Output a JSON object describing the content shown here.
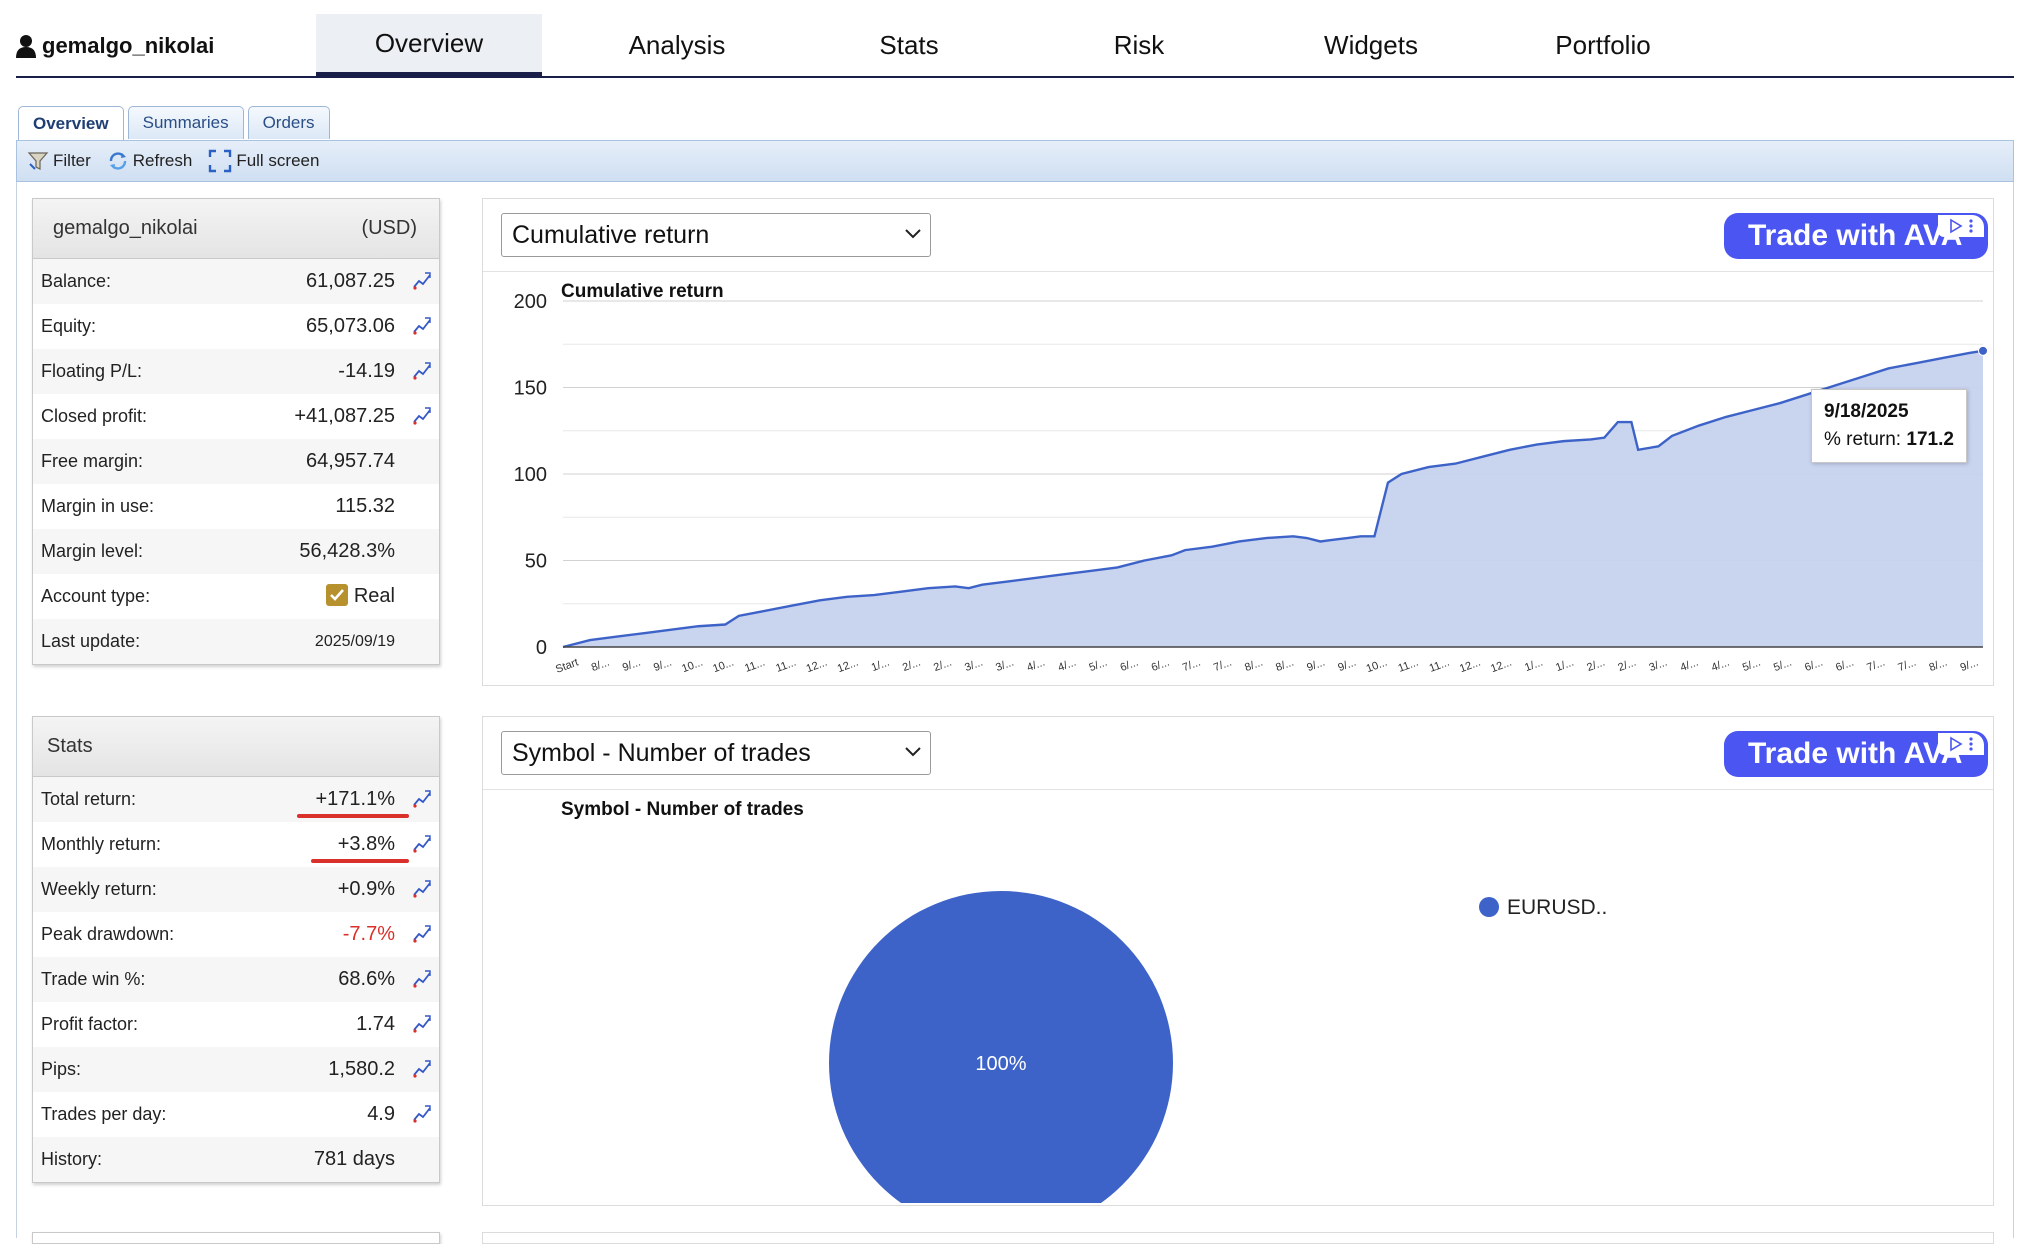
{
  "account": {
    "username": "gemalgo_nikolai",
    "currency": "(USD)"
  },
  "nav": {
    "tabs": [
      {
        "label": "Overview",
        "active": true
      },
      {
        "label": "Analysis"
      },
      {
        "label": "Stats"
      },
      {
        "label": "Risk"
      },
      {
        "label": "Widgets"
      },
      {
        "label": "Portfolio"
      }
    ]
  },
  "subtabs": [
    {
      "label": "Overview",
      "active": true
    },
    {
      "label": "Summaries"
    },
    {
      "label": "Orders"
    }
  ],
  "toolbar": {
    "filter": "Filter",
    "refresh": "Refresh",
    "fullscreen": "Full screen"
  },
  "account_panel": {
    "rows": [
      {
        "label": "Balance:",
        "value": "61,087.25"
      },
      {
        "label": "Equity:",
        "value": "65,073.06"
      },
      {
        "label": "Floating P/L:",
        "value": "-14.19"
      },
      {
        "label": "Closed profit:",
        "value": "+41,087.25"
      },
      {
        "label": "Free margin:",
        "value": "64,957.74"
      },
      {
        "label": "Margin in use:",
        "value": "115.32"
      },
      {
        "label": "Margin level:",
        "value": "56,428.3%"
      },
      {
        "label": "Account type:",
        "value": "Real"
      },
      {
        "label": "Last update:",
        "value": "2025/09/19"
      }
    ]
  },
  "stats_panel": {
    "title": "Stats",
    "rows": [
      {
        "label": "Total return:",
        "value": "+171.1%"
      },
      {
        "label": "Monthly return:",
        "value": "+3.8%"
      },
      {
        "label": "Weekly return:",
        "value": "+0.9%"
      },
      {
        "label": "Peak drawdown:",
        "value": "-7.7%"
      },
      {
        "label": "Trade win %:",
        "value": "68.6%"
      },
      {
        "label": "Profit factor:",
        "value": "1.74"
      },
      {
        "label": "Pips:",
        "value": "1,580.2"
      },
      {
        "label": "Trades per day:",
        "value": "4.9"
      },
      {
        "label": "History:",
        "value": "781 days"
      }
    ]
  },
  "cumulative_card": {
    "select": "Cumulative return",
    "ad": "Trade with AVA",
    "tooltip": {
      "date": "9/18/2025",
      "label": "% return: ",
      "value": "171.2"
    }
  },
  "symbol_card": {
    "select": "Symbol - Number of trades",
    "ad": "Trade with AVA"
  },
  "colors": {
    "series": "#3d63c8",
    "area": "#c6d2ee",
    "nav_border": "#1a1f4a",
    "negative": "#d9302b"
  },
  "chart_data": [
    {
      "type": "area",
      "title": "Cumulative return",
      "ylim": [
        0,
        200
      ],
      "yticks": [
        0,
        50,
        100,
        150,
        200
      ],
      "xticks": [
        "Start",
        "8/...",
        "9/...",
        "9/...",
        "10...",
        "10...",
        "11...",
        "11...",
        "12...",
        "12...",
        "1/...",
        "2/...",
        "2/...",
        "3/...",
        "3/...",
        "4/...",
        "4/...",
        "5/...",
        "6/...",
        "6/...",
        "7/...",
        "7/...",
        "8/...",
        "8/...",
        "9/...",
        "9/...",
        "10...",
        "11...",
        "11...",
        "12...",
        "12...",
        "1/...",
        "1/...",
        "2/...",
        "2/...",
        "3/...",
        "4/...",
        "4/...",
        "5/...",
        "5/...",
        "6/...",
        "6/...",
        "7/...",
        "7/...",
        "8/...",
        "9/..."
      ],
      "series": [
        {
          "values": [
            [
              0,
              0
            ],
            [
              2,
              4
            ],
            [
              4,
              6
            ],
            [
              6,
              8
            ],
            [
              8,
              10
            ],
            [
              10,
              12
            ],
            [
              12,
              13
            ],
            [
              13,
              18
            ],
            [
              15,
              21
            ],
            [
              17,
              24
            ],
            [
              19,
              27
            ],
            [
              21,
              29
            ],
            [
              23,
              30
            ],
            [
              25,
              32
            ],
            [
              27,
              34
            ],
            [
              29,
              35
            ],
            [
              30,
              34
            ],
            [
              31,
              36
            ],
            [
              33,
              38
            ],
            [
              35,
              40
            ],
            [
              37,
              42
            ],
            [
              39,
              44
            ],
            [
              41,
              46
            ],
            [
              43,
              50
            ],
            [
              45,
              53
            ],
            [
              46,
              56
            ],
            [
              48,
              58
            ],
            [
              50,
              61
            ],
            [
              52,
              63
            ],
            [
              54,
              64
            ],
            [
              55,
              63
            ],
            [
              56,
              61
            ],
            [
              57,
              62
            ],
            [
              58,
              63
            ],
            [
              59,
              64
            ],
            [
              60,
              64
            ],
            [
              61,
              95
            ],
            [
              62,
              100
            ],
            [
              64,
              104
            ],
            [
              66,
              106
            ],
            [
              68,
              110
            ],
            [
              70,
              114
            ],
            [
              72,
              117
            ],
            [
              74,
              119
            ],
            [
              76,
              120
            ],
            [
              77,
              121
            ],
            [
              78,
              130
            ],
            [
              79,
              130
            ],
            [
              79.5,
              114
            ],
            [
              81,
              116
            ],
            [
              82,
              122
            ],
            [
              84,
              128
            ],
            [
              86,
              133
            ],
            [
              88,
              137
            ],
            [
              90,
              141
            ],
            [
              92,
              146
            ],
            [
              94,
              151
            ],
            [
              96,
              156
            ],
            [
              98,
              161
            ],
            [
              100,
              164
            ],
            [
              102,
              167
            ],
            [
              104,
              170
            ],
            [
              105,
              171.2
            ]
          ]
        }
      ]
    },
    {
      "type": "pie",
      "title": "Symbol - Number of trades",
      "series": [
        {
          "name": "EURUSD..",
          "value": 100,
          "label": "100%"
        }
      ]
    }
  ]
}
